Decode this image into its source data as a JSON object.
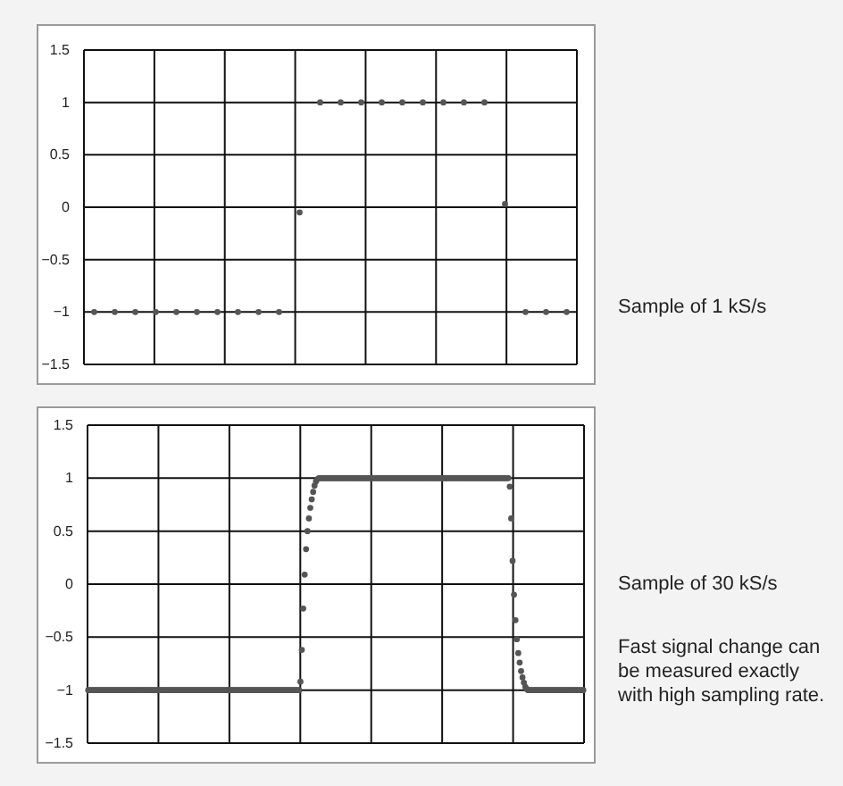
{
  "chart_data": [
    {
      "type": "scatter",
      "marker": "circle",
      "grid": true,
      "tick_labels": "y",
      "categories": [
        null,
        null,
        null,
        null,
        null,
        null,
        null,
        null,
        null,
        null,
        null,
        null,
        null,
        null,
        null,
        null,
        null,
        null,
        null,
        null,
        null,
        null,
        null,
        null
      ],
      "ylim": [
        -1.5,
        1.5
      ],
      "yticks": [
        {
          "value": -1.5,
          "label": "−1.5"
        },
        {
          "value": -1,
          "label": "−1"
        },
        {
          "value": -0.5,
          "label": "−0.5"
        },
        0,
        0.5,
        1,
        1.5
      ],
      "annotations": [
        "Sample of 1 kS/s"
      ],
      "series": [
        {
          "color": "#555555",
          "values": [
            -1,
            -1,
            -1,
            -1,
            -1,
            -1,
            -1,
            -1,
            -1,
            -1,
            -0.05,
            1,
            1,
            1,
            1,
            1,
            1,
            1,
            1,
            1,
            0.03,
            -1,
            -1,
            -1
          ]
        }
      ]
    },
    {
      "type": "scatter",
      "marker": "circle",
      "grid": true,
      "tick_labels": "y",
      "categories": [
        null,
        null,
        null,
        null,
        null,
        null,
        null,
        null,
        null,
        null,
        null,
        null,
        null,
        null,
        null,
        null,
        null,
        null,
        null,
        null,
        null,
        null,
        null,
        null,
        null,
        null,
        null,
        null,
        null,
        null,
        null,
        null,
        null,
        null,
        null,
        null,
        null,
        null,
        null,
        null,
        null,
        null,
        null,
        null,
        null,
        null,
        null,
        null,
        null,
        null,
        null,
        null,
        null,
        null,
        null,
        null,
        null,
        null,
        null,
        null,
        null,
        null,
        null,
        null,
        null,
        null,
        null,
        null,
        null,
        null,
        null,
        null,
        null,
        null,
        null,
        null,
        null,
        null,
        null,
        null,
        null,
        null,
        null,
        null,
        null,
        null,
        null,
        null,
        null,
        null,
        null,
        null,
        null,
        null,
        null,
        null,
        null,
        null,
        null,
        null,
        null,
        null,
        null,
        null,
        null,
        null,
        null,
        null,
        null,
        null,
        null,
        null,
        null,
        null,
        null,
        null,
        null,
        null,
        null,
        null,
        null,
        null,
        null,
        null,
        null,
        null,
        null,
        null,
        null,
        null,
        null,
        null,
        null,
        null,
        null,
        null,
        null,
        null,
        null,
        null,
        null,
        null,
        null,
        null,
        null,
        null,
        null,
        null,
        null,
        null,
        null,
        null,
        null,
        null,
        null,
        null,
        null,
        null,
        null,
        null,
        null,
        null,
        null,
        null,
        null,
        null,
        null,
        null,
        null,
        null,
        null,
        null,
        null,
        null,
        null,
        null,
        null,
        null,
        null,
        null,
        null,
        null,
        null,
        null,
        null,
        null,
        null,
        null,
        null,
        null,
        null,
        null,
        null,
        null,
        null,
        null,
        null,
        null,
        null,
        null,
        null,
        null,
        null,
        null,
        null,
        null,
        null,
        null,
        null,
        null,
        null,
        null,
        null,
        null,
        null,
        null,
        null,
        null,
        null,
        null,
        null,
        null,
        null,
        null,
        null,
        null,
        null,
        null,
        null,
        null,
        null,
        null,
        null,
        null,
        null,
        null,
        null,
        null,
        null,
        null,
        null,
        null,
        null,
        null,
        null,
        null,
        null,
        null,
        null,
        null,
        null,
        null,
        null,
        null,
        null,
        null,
        null,
        null,
        null,
        null,
        null,
        null,
        null,
        null,
        null,
        null,
        null,
        null,
        null,
        null,
        null,
        null,
        null,
        null,
        null,
        null,
        null,
        null,
        null,
        null,
        null,
        null,
        null,
        null,
        null,
        null,
        null,
        null,
        null,
        null,
        null,
        null,
        null,
        null,
        null,
        null,
        null,
        null,
        null,
        null,
        null,
        null,
        null,
        null,
        null,
        null,
        null,
        null,
        null,
        null,
        null,
        null,
        null,
        null,
        null,
        null,
        null,
        null,
        null,
        null,
        null,
        null,
        null,
        null,
        null,
        null,
        null,
        null,
        null,
        null,
        null,
        null,
        null,
        null,
        null,
        null,
        null,
        null,
        null,
        null,
        null,
        null,
        null,
        null,
        null,
        null,
        null,
        null,
        null,
        null,
        null
      ],
      "ylim": [
        -1.5,
        1.5
      ],
      "yticks": [
        {
          "value": -1.5,
          "label": "−1.5"
        },
        {
          "value": -1,
          "label": "−1"
        },
        {
          "value": -0.5,
          "label": "−0.5"
        },
        0,
        0.5,
        1,
        1.5
      ],
      "annotations": [
        "Sample of 30 kS/s",
        "Fast signal change can be measured exactly with high sampling rate."
      ],
      "series": [
        {
          "color": "#555555",
          "values": [
            -1,
            -1,
            -1,
            -1,
            -1,
            -1,
            -1,
            -1,
            -1,
            -1,
            -1,
            -1,
            -1,
            -1,
            -1,
            -1,
            -1,
            -1,
            -1,
            -1,
            -1,
            -1,
            -1,
            -1,
            -1,
            -1,
            -1,
            -1,
            -1,
            -1,
            -1,
            -1,
            -1,
            -1,
            -1,
            -1,
            -1,
            -1,
            -1,
            -1,
            -1,
            -1,
            -1,
            -1,
            -1,
            -1,
            -1,
            -1,
            -1,
            -1,
            -1,
            -1,
            -1,
            -1,
            -1,
            -1,
            -1,
            -1,
            -1,
            -1,
            -1,
            -1,
            -1,
            -1,
            -1,
            -1,
            -1,
            -1,
            -1,
            -1,
            -1,
            -1,
            -1,
            -1,
            -1,
            -1,
            -1,
            -1,
            -1,
            -1,
            -1,
            -1,
            -1,
            -1,
            -1,
            -1,
            -1,
            -1,
            -1,
            -1,
            -1,
            -1,
            -1,
            -1,
            -1,
            -1,
            -1,
            -1,
            -1,
            -1,
            -1,
            -1,
            -1,
            -1,
            -1,
            -1,
            -1,
            -1,
            -1,
            -1,
            -1,
            -1,
            -1,
            -1,
            -1,
            -1,
            -1,
            -1,
            -1,
            -1,
            -1,
            -1,
            -1,
            -1,
            -1,
            -1,
            -1,
            -1,
            -1,
            -1,
            -1,
            -1,
            -1,
            -1,
            -1,
            -1,
            -1,
            -1,
            -1,
            -1,
            -1,
            -1,
            -1,
            -1,
            -1,
            -1,
            -1,
            -1,
            -1,
            -1,
            -0.92,
            -0.62,
            -0.23,
            0.09,
            0.33,
            0.5,
            0.62,
            0.72,
            0.8,
            0.87,
            0.93,
            0.97,
            0.99,
            1,
            1,
            1,
            1,
            1,
            1,
            1,
            1,
            1,
            1,
            1,
            1,
            1,
            1,
            1,
            1,
            1,
            1,
            1,
            1,
            1,
            1,
            1,
            1,
            1,
            1,
            1,
            1,
            1,
            1,
            1,
            1,
            1,
            1,
            1,
            1,
            1,
            1,
            1,
            1,
            1,
            1,
            1,
            1,
            1,
            1,
            1,
            1,
            1,
            1,
            1,
            1,
            1,
            1,
            1,
            1,
            1,
            1,
            1,
            1,
            1,
            1,
            1,
            1,
            1,
            1,
            1,
            1,
            1,
            1,
            1,
            1,
            1,
            1,
            1,
            1,
            1,
            1,
            1,
            1,
            1,
            1,
            1,
            1,
            1,
            1,
            1,
            1,
            1,
            1,
            1,
            1,
            1,
            1,
            1,
            1,
            1,
            1,
            1,
            1,
            1,
            1,
            1,
            1,
            1,
            1,
            1,
            1,
            1,
            1,
            1,
            1,
            1,
            1,
            1,
            1,
            1,
            1,
            1,
            1,
            1,
            1,
            1,
            1,
            1,
            1,
            1,
            1,
            1,
            1,
            1,
            1,
            1,
            1,
            1,
            0.92,
            0.62,
            0.22,
            -0.1,
            -0.34,
            -0.52,
            -0.65,
            -0.74,
            -0.82,
            -0.88,
            -0.93,
            -0.97,
            -0.99,
            -1,
            -1,
            -1,
            -1,
            -1,
            -1,
            -1,
            -1,
            -1,
            -1,
            -1,
            -1,
            -1,
            -1,
            -1,
            -1,
            -1,
            -1,
            -1,
            -1,
            -1,
            -1,
            -1,
            -1,
            -1,
            -1,
            -1,
            -1,
            -1,
            -1,
            -1,
            -1,
            -1,
            -1,
            -1,
            -1,
            -1,
            -1,
            -1,
            -1
          ]
        }
      ]
    }
  ]
}
